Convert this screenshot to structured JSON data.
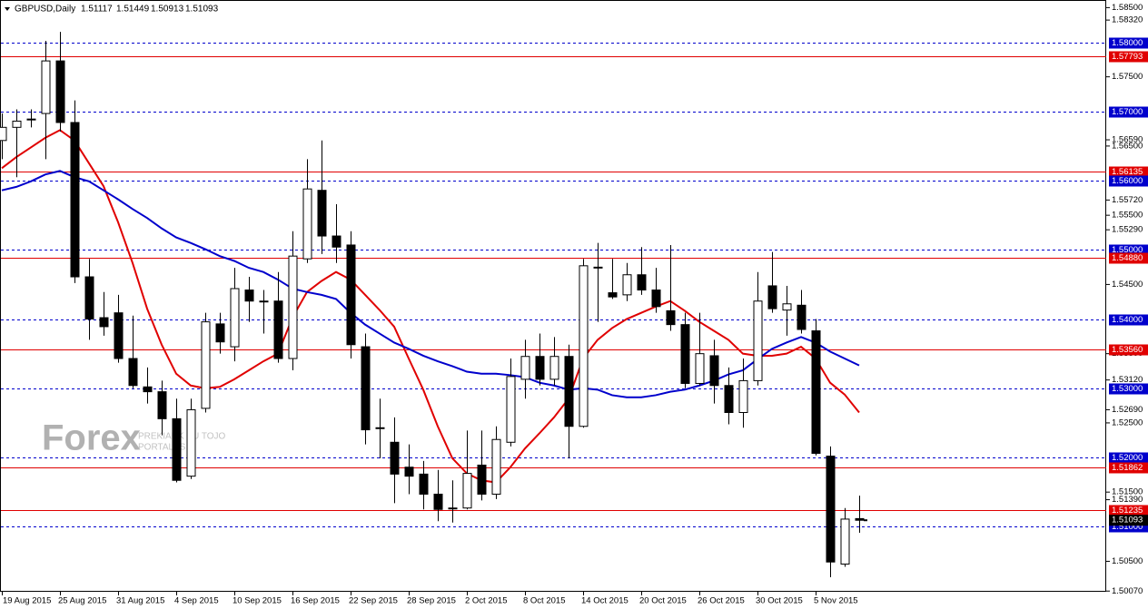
{
  "chart_data": {
    "type": "candlestick",
    "title": "GBPUSD,Daily",
    "watermark": [
      "Forex",
      "PREKIAUK SU TOJO",
      "PORTALAS"
    ],
    "categories": [
      "19 Aug 2015",
      null,
      null,
      null,
      "25 Aug 2015",
      null,
      null,
      null,
      "31 Aug 2015",
      null,
      null,
      null,
      "4 Sep 2015",
      null,
      null,
      null,
      "10 Sep 2015",
      null,
      null,
      null,
      "16 Sep 2015",
      null,
      null,
      null,
      "22 Sep 2015",
      null,
      null,
      null,
      "28 Sep 2015",
      null,
      null,
      null,
      "2 Oct 2015",
      null,
      null,
      null,
      "8 Oct 2015",
      null,
      null,
      null,
      "14 Oct 2015",
      null,
      null,
      null,
      "20 Oct 2015",
      null,
      null,
      null,
      "26 Oct 2015",
      null,
      null,
      null,
      "30 Oct 2015",
      null,
      null,
      null,
      "5 Nov 2015",
      null,
      null,
      null
    ],
    "ohlc": [
      [
        1.5658,
        1.5697,
        1.5631,
        1.5677
      ],
      [
        1.5677,
        1.5703,
        1.5605,
        1.5686
      ],
      [
        1.5688,
        1.5703,
        1.5677,
        1.5689
      ],
      [
        1.5697,
        1.5802,
        1.5631,
        1.5773
      ],
      [
        1.5773,
        1.5815,
        1.5671,
        1.5684
      ],
      [
        1.5684,
        1.5716,
        1.5452,
        1.5461
      ],
      [
        1.5461,
        1.5487,
        1.537,
        1.54
      ],
      [
        1.5402,
        1.5439,
        1.5376,
        1.5389
      ],
      [
        1.5409,
        1.5435,
        1.5337,
        1.5343
      ],
      [
        1.5343,
        1.5405,
        1.53,
        1.5304
      ],
      [
        1.5302,
        1.533,
        1.5278,
        1.5295
      ],
      [
        1.5295,
        1.5311,
        1.5232,
        1.5256
      ],
      [
        1.5256,
        1.5285,
        1.5164,
        1.5167
      ],
      [
        1.5173,
        1.5285,
        1.5169,
        1.5269
      ],
      [
        1.5271,
        1.5409,
        1.5265,
        1.5396
      ],
      [
        1.5393,
        1.5409,
        1.535,
        1.5367
      ],
      [
        1.536,
        1.5474,
        1.5339,
        1.5444
      ],
      [
        1.5442,
        1.5461,
        1.5396,
        1.5426
      ],
      [
        1.5426,
        1.5442,
        1.5379,
        1.5425
      ],
      [
        1.5426,
        1.5468,
        1.5337,
        1.5343
      ],
      [
        1.5343,
        1.5527,
        1.5326,
        1.5491
      ],
      [
        1.5487,
        1.5631,
        1.5481,
        1.5588
      ],
      [
        1.5586,
        1.5658,
        1.5494,
        1.552
      ],
      [
        1.552,
        1.5566,
        1.5481,
        1.5504
      ],
      [
        1.5507,
        1.5527,
        1.5343,
        1.5363
      ],
      [
        1.536,
        1.5379,
        1.5219,
        1.524
      ],
      [
        1.5243,
        1.5285,
        1.5199,
        1.5242
      ],
      [
        1.5222,
        1.5258,
        1.5134,
        1.5176
      ],
      [
        1.5186,
        1.5219,
        1.5147,
        1.5173
      ],
      [
        1.5176,
        1.5195,
        1.5125,
        1.5147
      ],
      [
        1.5147,
        1.5182,
        1.5108,
        1.5125
      ],
      [
        1.5127,
        1.5167,
        1.5106,
        1.5126
      ],
      [
        1.5127,
        1.5239,
        1.5125,
        1.5177
      ],
      [
        1.5189,
        1.5239,
        1.5138,
        1.5147
      ],
      [
        1.5147,
        1.5245,
        1.514,
        1.5226
      ],
      [
        1.5222,
        1.5343,
        1.5216,
        1.5317
      ],
      [
        1.5313,
        1.537,
        1.5285,
        1.5346
      ],
      [
        1.5346,
        1.5379,
        1.5304,
        1.5313
      ],
      [
        1.5313,
        1.5374,
        1.5304,
        1.5346
      ],
      [
        1.5346,
        1.5363,
        1.5199,
        1.5245
      ],
      [
        1.5245,
        1.5487,
        1.5243,
        1.5477
      ],
      [
        1.5474,
        1.551,
        1.5396,
        1.5475
      ],
      [
        1.5438,
        1.5487,
        1.5429,
        1.5432
      ],
      [
        1.5435,
        1.5481,
        1.5426,
        1.5464
      ],
      [
        1.5464,
        1.5504,
        1.5435,
        1.5442
      ],
      [
        1.5442,
        1.5474,
        1.5409,
        1.5418
      ],
      [
        1.5412,
        1.5507,
        1.5383,
        1.5392
      ],
      [
        1.5392,
        1.5409,
        1.53,
        1.5307
      ],
      [
        1.5307,
        1.5409,
        1.5304,
        1.535
      ],
      [
        1.5347,
        1.537,
        1.5278,
        1.5304
      ],
      [
        1.5304,
        1.533,
        1.5248,
        1.5265
      ],
      [
        1.5265,
        1.5343,
        1.5243,
        1.5311
      ],
      [
        1.5311,
        1.5468,
        1.5304,
        1.5426
      ],
      [
        1.5448,
        1.5497,
        1.5409,
        1.5415
      ],
      [
        1.5413,
        1.5448,
        1.5376,
        1.5422
      ],
      [
        1.542,
        1.5442,
        1.5379,
        1.5385
      ],
      [
        1.5383,
        1.54,
        1.5203,
        1.5206
      ],
      [
        1.5202,
        1.5216,
        1.5027,
        1.5049
      ],
      [
        1.5046,
        1.5127,
        1.5042,
        1.5111
      ],
      [
        1.51117,
        1.51449,
        1.50913,
        1.51093
      ]
    ],
    "lines": [
      {
        "color": "#e00000",
        "values": [
          1.5618,
          1.5634,
          1.5648,
          1.5662,
          1.5673,
          1.5658,
          1.5625,
          1.5592,
          1.554,
          1.5481,
          1.5415,
          1.5363,
          1.5321,
          1.5304,
          1.53,
          1.5302,
          1.5313,
          1.5326,
          1.5339,
          1.535,
          1.5402,
          1.5439,
          1.5455,
          1.5468,
          1.5457,
          1.5435,
          1.5413,
          1.5389,
          1.5343,
          1.5298,
          1.5245,
          1.5199,
          1.5177,
          1.5167,
          1.5164,
          1.5186,
          1.5213,
          1.5235,
          1.5258,
          1.5285,
          1.5343,
          1.537,
          1.5387,
          1.54,
          1.5409,
          1.5418,
          1.5426,
          1.5412,
          1.5396,
          1.5383,
          1.537,
          1.535,
          1.5347,
          1.5347,
          1.535,
          1.536,
          1.5343,
          1.5308,
          1.5291,
          1.5265
        ]
      },
      {
        "color": "#0000cc",
        "values": [
          1.5586,
          1.5591,
          1.5599,
          1.5609,
          1.5614,
          1.5605,
          1.5599,
          1.5586,
          1.5573,
          1.5559,
          1.5546,
          1.5531,
          1.5518,
          1.551,
          1.5501,
          1.5491,
          1.5484,
          1.5474,
          1.5468,
          1.5457,
          1.5444,
          1.5439,
          1.5435,
          1.5429,
          1.5409,
          1.5392,
          1.5379,
          1.5366,
          1.5357,
          1.5347,
          1.5339,
          1.5332,
          1.5324,
          1.5321,
          1.5321,
          1.5319,
          1.5316,
          1.5308,
          1.5304,
          1.5298,
          1.53,
          1.5298,
          1.529,
          1.5287,
          1.5287,
          1.529,
          1.5295,
          1.5298,
          1.5304,
          1.5311,
          1.532,
          1.5326,
          1.5342,
          1.5357,
          1.5366,
          1.5374,
          1.5366,
          1.5353,
          1.5343,
          1.5333
        ]
      }
    ],
    "ylim": [
      1.5006,
      1.5861
    ],
    "yticks": [
      {
        "value": 1.585,
        "label": "1.58500"
      },
      {
        "value": 1.5832,
        "label": "1.58320"
      },
      {
        "value": 1.575,
        "label": "1.57500"
      },
      {
        "value": 1.5659,
        "label": "1.56590"
      },
      {
        "value": 1.565,
        "label": "1.56500"
      },
      {
        "value": 1.5572,
        "label": "1.55720"
      },
      {
        "value": 1.555,
        "label": "1.55500"
      },
      {
        "value": 1.5529,
        "label": "1.55290"
      },
      {
        "value": 1.545,
        "label": "1.54500"
      },
      {
        "value": 1.535,
        "label": "1.53500"
      },
      {
        "value": 1.5312,
        "label": "1.53120"
      },
      {
        "value": 1.5269,
        "label": "1.52690"
      },
      {
        "value": 1.525,
        "label": "1.52500"
      },
      {
        "value": 1.515,
        "label": "1.51500"
      },
      {
        "value": 1.5139,
        "label": "1.51390"
      },
      {
        "value": 1.505,
        "label": "1.50500"
      },
      {
        "value": 1.5007,
        "label": "1.50070"
      }
    ],
    "hlines": [
      {
        "value": 1.58,
        "label": "1.58000",
        "color": "#0000cc",
        "style": "dashed"
      },
      {
        "value": 1.57793,
        "label": "1.57793",
        "color": "#e00000",
        "style": "solid"
      },
      {
        "value": 1.57,
        "label": "1.57000",
        "color": "#0000cc",
        "style": "dashed"
      },
      {
        "value": 1.56135,
        "label": "1.56135",
        "color": "#e00000",
        "style": "solid"
      },
      {
        "value": 1.56,
        "label": "1.56000",
        "color": "#0000cc",
        "style": "dashed"
      },
      {
        "value": 1.55,
        "label": "1.55000",
        "color": "#0000cc",
        "style": "dashed"
      },
      {
        "value": 1.5488,
        "label": "1.54880",
        "color": "#e00000",
        "style": "solid"
      },
      {
        "value": 1.54,
        "label": "1.54000",
        "color": "#0000cc",
        "style": "dashed"
      },
      {
        "value": 1.5356,
        "label": "1.53560",
        "color": "#e00000",
        "style": "solid"
      },
      {
        "value": 1.53,
        "label": "1.53000",
        "color": "#0000cc",
        "style": "dashed"
      },
      {
        "value": 1.52,
        "label": "1.52000",
        "color": "#0000cc",
        "style": "dashed"
      },
      {
        "value": 1.51862,
        "label": "1.51862",
        "color": "#e00000",
        "style": "solid"
      },
      {
        "value": 1.51235,
        "label": "1.51235",
        "color": "#e00000",
        "style": "solid"
      },
      {
        "value": 1.51,
        "label": "1.51000",
        "color": "#0000cc",
        "style": "dashed"
      }
    ]
  }
}
